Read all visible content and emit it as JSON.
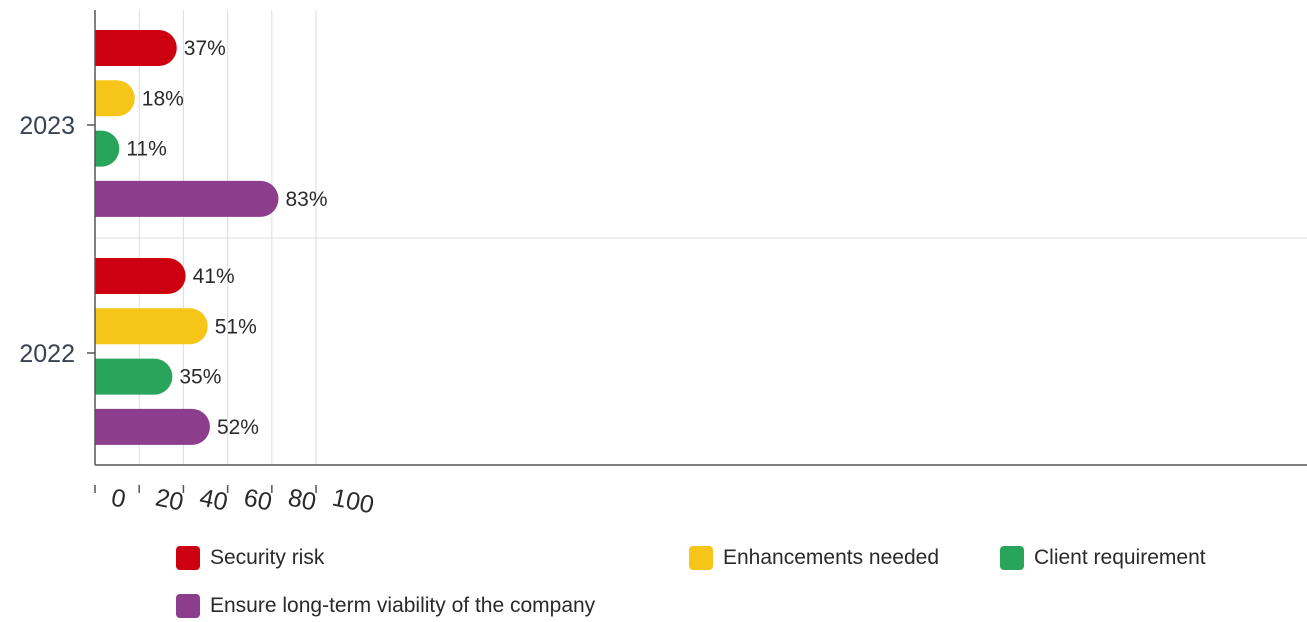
{
  "chart_data": {
    "type": "bar",
    "orientation": "horizontal",
    "categories": [
      "2023",
      "2022"
    ],
    "series": [
      {
        "name": "Security risk",
        "color": "#cc0011",
        "values": [
          37,
          41
        ]
      },
      {
        "name": "Enhancements needed",
        "color": "#f5c518",
        "values": [
          18,
          51
        ]
      },
      {
        "name": "Client requirement",
        "color": "#28a55a",
        "values": [
          11,
          35
        ]
      },
      {
        "name": "Ensure long-term viability of the company",
        "color": "#8c3d8c",
        "values": [
          83,
          52
        ]
      }
    ],
    "data_labels": [
      [
        "37%",
        "18%",
        "11%",
        "83%"
      ],
      [
        "41%",
        "51%",
        "35%",
        "52%"
      ]
    ],
    "xlim": [
      0,
      100
    ],
    "x_ticks": [
      "0",
      "20",
      "40",
      "60",
      "80",
      "100"
    ],
    "title": "",
    "xlabel": "",
    "ylabel": "",
    "grid": "vertical",
    "legend_position": "bottom"
  }
}
